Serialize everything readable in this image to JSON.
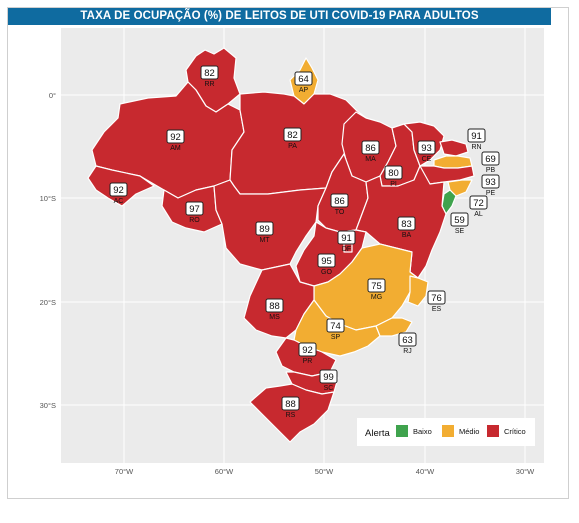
{
  "title": "TAXA DE OCUPAÇÃO (%) DE LEITOS DE UTI COVID-19 PARA ADULTOS",
  "colors": {
    "Baixo": "#3fa34d",
    "Médio": "#f2ad32",
    "Crítico": "#c7292f",
    "panel": "#ebebeb",
    "grid": "#ffffff",
    "title_bg": "#0f6ba0"
  },
  "axes": {
    "x_ticks": [
      "70°W",
      "60°W",
      "50°W",
      "40°W",
      "30°W"
    ],
    "y_ticks": [
      "0°",
      "10°S",
      "20°S",
      "30°S"
    ]
  },
  "legend": {
    "title": "Alerta",
    "placement": "bottom-right",
    "items": [
      {
        "label": "Baixo",
        "color": "#3fa34d"
      },
      {
        "label": "Médio",
        "color": "#f2ad32"
      },
      {
        "label": "Crítico",
        "color": "#c7292f"
      }
    ]
  },
  "states": [
    {
      "uf": "RR",
      "value": 82,
      "alerta": "Crítico"
    },
    {
      "uf": "AP",
      "value": 64,
      "alerta": "Médio"
    },
    {
      "uf": "AM",
      "value": 92,
      "alerta": "Crítico"
    },
    {
      "uf": "PA",
      "value": 82,
      "alerta": "Crítico"
    },
    {
      "uf": "MA",
      "value": 86,
      "alerta": "Crítico"
    },
    {
      "uf": "CE",
      "value": 93,
      "alerta": "Crítico"
    },
    {
      "uf": "RN",
      "value": 91,
      "alerta": "Crítico"
    },
    {
      "uf": "PB",
      "value": 69,
      "alerta": "Médio"
    },
    {
      "uf": "PI",
      "value": 80,
      "alerta": "Crítico"
    },
    {
      "uf": "PE",
      "value": 93,
      "alerta": "Crítico"
    },
    {
      "uf": "AC",
      "value": 92,
      "alerta": "Crítico"
    },
    {
      "uf": "AL",
      "value": 72,
      "alerta": "Médio"
    },
    {
      "uf": "RO",
      "value": 97,
      "alerta": "Crítico"
    },
    {
      "uf": "TO",
      "value": 86,
      "alerta": "Crítico"
    },
    {
      "uf": "SE",
      "value": 59,
      "alerta": "Baixo"
    },
    {
      "uf": "MT",
      "value": 89,
      "alerta": "Crítico"
    },
    {
      "uf": "BA",
      "value": 83,
      "alerta": "Crítico"
    },
    {
      "uf": "DF",
      "value": 91,
      "alerta": "Crítico"
    },
    {
      "uf": "GO",
      "value": 95,
      "alerta": "Crítico"
    },
    {
      "uf": "MG",
      "value": 75,
      "alerta": "Médio"
    },
    {
      "uf": "ES",
      "value": 76,
      "alerta": "Médio"
    },
    {
      "uf": "MS",
      "value": 88,
      "alerta": "Crítico"
    },
    {
      "uf": "SP",
      "value": 74,
      "alerta": "Médio"
    },
    {
      "uf": "RJ",
      "value": 63,
      "alerta": "Médio"
    },
    {
      "uf": "PR",
      "value": 92,
      "alerta": "Crítico"
    },
    {
      "uf": "SC",
      "value": 99,
      "alerta": "Crítico"
    },
    {
      "uf": "RS",
      "value": 88,
      "alerta": "Crítico"
    }
  ]
}
